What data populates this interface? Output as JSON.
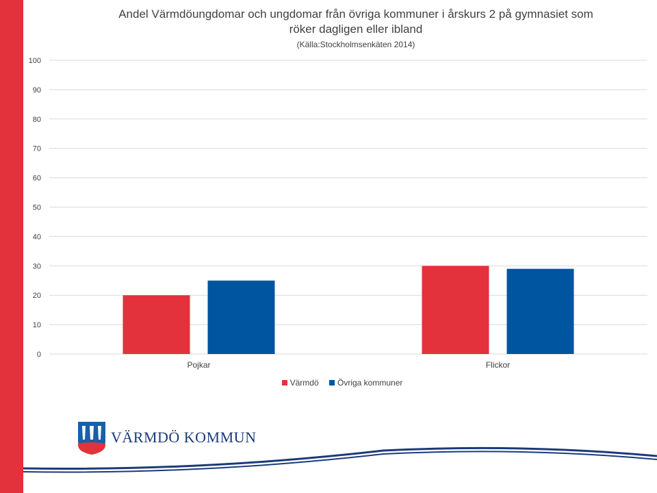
{
  "colors": {
    "accent_red": "#e3323b",
    "blue": "#0055a0",
    "navy": "#1a3a7a",
    "grid": "#d9d9d9"
  },
  "chart_data": {
    "type": "bar",
    "title_lines": [
      "Andel Värmdöungdomar och ungdomar från övriga kommuner i årskurs 2 på gymnasiet som",
      "röker dagligen eller ibland"
    ],
    "subtitle": "(Källa:Stockholmsenkäten 2014)",
    "categories": [
      "Pojkar",
      "Flickor"
    ],
    "series": [
      {
        "name": "Värmdö",
        "values": [
          20,
          30
        ]
      },
      {
        "name": "Övriga kommuner",
        "values": [
          25,
          29
        ]
      }
    ],
    "yticks": [
      "0",
      "10",
      "20",
      "30",
      "40",
      "50",
      "60",
      "70",
      "80",
      "90",
      "100"
    ],
    "ylim": [
      0,
      100
    ],
    "grid": true,
    "legend_position": "bottom"
  },
  "logo": {
    "text": "VÄRMDÖ KOMMUN",
    "icon": "varmdo-coat-of-arms-icon"
  }
}
